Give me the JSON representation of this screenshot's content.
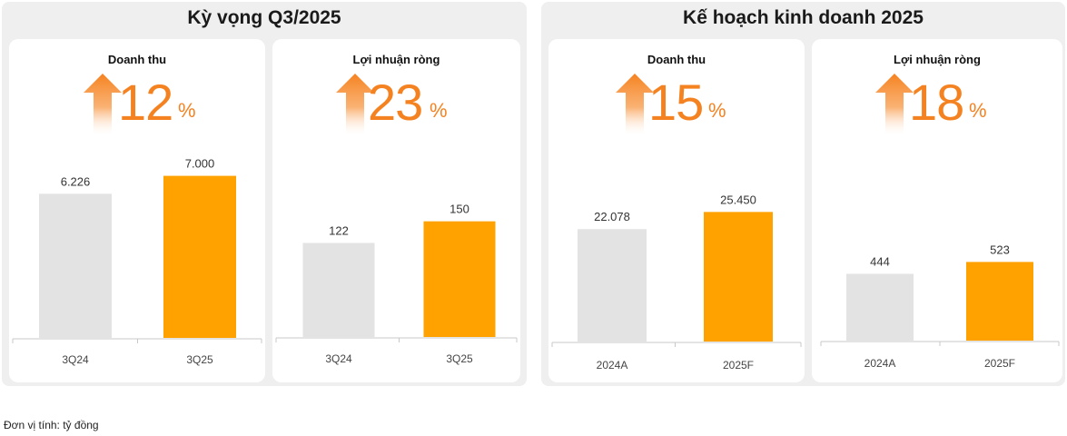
{
  "colors": {
    "accent": "#f58220",
    "bar_current": "#ffa200",
    "bar_previous": "#e3e3e3",
    "panel_bg": "#efefef"
  },
  "footnote": "Đơn vị tính: tỷ đồng",
  "panels": [
    {
      "title": "Kỳ vọng Q3/2025",
      "cards": [
        {
          "title": "Doanh thu",
          "growth_value": "12",
          "growth_unit": "%",
          "icon": "up-arrow-icon"
        },
        {
          "title": "Lợi nhuận ròng",
          "growth_value": "23",
          "growth_unit": "%",
          "icon": "up-arrow-icon"
        }
      ]
    },
    {
      "title": "Kế hoạch kinh doanh 2025",
      "cards": [
        {
          "title": "Doanh thu",
          "growth_value": "15",
          "growth_unit": "%",
          "icon": "up-arrow-icon"
        },
        {
          "title": "Lợi nhuận ròng",
          "growth_value": "18",
          "growth_unit": "%",
          "icon": "up-arrow-icon"
        }
      ]
    }
  ],
  "chart_data": [
    {
      "type": "bar",
      "title": "Doanh thu",
      "group": "Kỳ vọng Q3/2025",
      "categories": [
        "3Q24",
        "3Q25"
      ],
      "values": [
        6226,
        7000
      ],
      "labels": [
        "6.226",
        "7.000"
      ],
      "ylim": [
        0,
        8200
      ],
      "grid": false
    },
    {
      "type": "bar",
      "title": "Lợi nhuận ròng",
      "group": "Kỳ vọng Q3/2025",
      "categories": [
        "3Q24",
        "3Q25"
      ],
      "values": [
        122,
        150
      ],
      "labels": [
        "122",
        "150"
      ],
      "ylim": [
        0,
        245
      ],
      "grid": false
    },
    {
      "type": "bar",
      "title": "Doanh thu",
      "group": "Kế hoạch kinh doanh 2025",
      "categories": [
        "2024A",
        "2025F"
      ],
      "values": [
        22078,
        25450
      ],
      "labels": [
        "22.078",
        "25.450"
      ],
      "ylim": [
        0,
        38000
      ],
      "grid": false
    },
    {
      "type": "bar",
      "title": "Lợi nhuận ròng",
      "group": "Kế hoạch kinh doanh 2025",
      "categories": [
        "2024A",
        "2025F"
      ],
      "values": [
        444,
        523
      ],
      "labels": [
        "444",
        "523"
      ],
      "ylim": [
        0,
        1280
      ],
      "grid": false
    }
  ]
}
